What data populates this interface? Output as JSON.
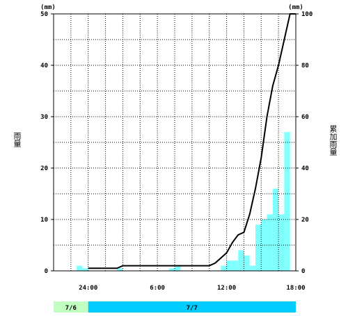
{
  "chart_data": {
    "type": "bar+line",
    "units_left": "(mm)",
    "units_right": "(mm)",
    "ylabel_left": "雨量",
    "ylabel_right": "累加雨量",
    "left_axis": {
      "ylim": [
        0,
        50
      ],
      "ticks": [
        "0",
        "10",
        "20",
        "30",
        "40",
        "50"
      ]
    },
    "right_axis": {
      "ylim": [
        0,
        100
      ],
      "ticks": [
        "0",
        "20",
        "40",
        "60",
        "80",
        "100"
      ]
    },
    "x_ticks": [
      "24:00",
      "6:00",
      "12:00",
      "18:00"
    ],
    "hours_start": 0,
    "hours_end": 42,
    "x_tick_hours": [
      6,
      18,
      30,
      42
    ],
    "bars": {
      "color": "#80ffff",
      "hours": [
        4,
        5,
        11,
        12,
        13,
        14,
        15,
        16,
        17,
        18,
        19,
        20,
        21,
        22,
        23,
        24,
        25,
        26,
        27,
        28,
        29,
        30,
        31,
        32,
        33,
        34,
        35,
        36,
        37,
        38,
        39,
        40,
        41
      ],
      "values": [
        1,
        0.5,
        0.5,
        0,
        0,
        0,
        0,
        0,
        0,
        0,
        0,
        0.5,
        1,
        0,
        0,
        0,
        0,
        0,
        0,
        0,
        1,
        2,
        2,
        4,
        3,
        1,
        9,
        10,
        11,
        16,
        11,
        27,
        0
      ]
    },
    "line": {
      "color": "#000000",
      "hours": [
        6,
        11,
        12,
        13,
        20,
        21,
        22,
        23,
        24,
        25,
        26,
        27,
        28,
        29,
        30,
        31,
        32,
        33,
        34,
        35,
        36,
        37,
        38,
        39,
        40,
        41,
        42
      ],
      "values": [
        1,
        1,
        2,
        2,
        2,
        2,
        2,
        2,
        2,
        2,
        2,
        2,
        3,
        5,
        7,
        11,
        14,
        15,
        22,
        32,
        44,
        60,
        72,
        80,
        90,
        100,
        100
      ]
    },
    "date_bar": [
      {
        "label": "7/6",
        "color": "#c0ffc0",
        "from_hour": 0,
        "to_hour": 6
      },
      {
        "label": "7/7",
        "color": "#00ccff",
        "from_hour": 6,
        "to_hour": 48
      }
    ]
  }
}
